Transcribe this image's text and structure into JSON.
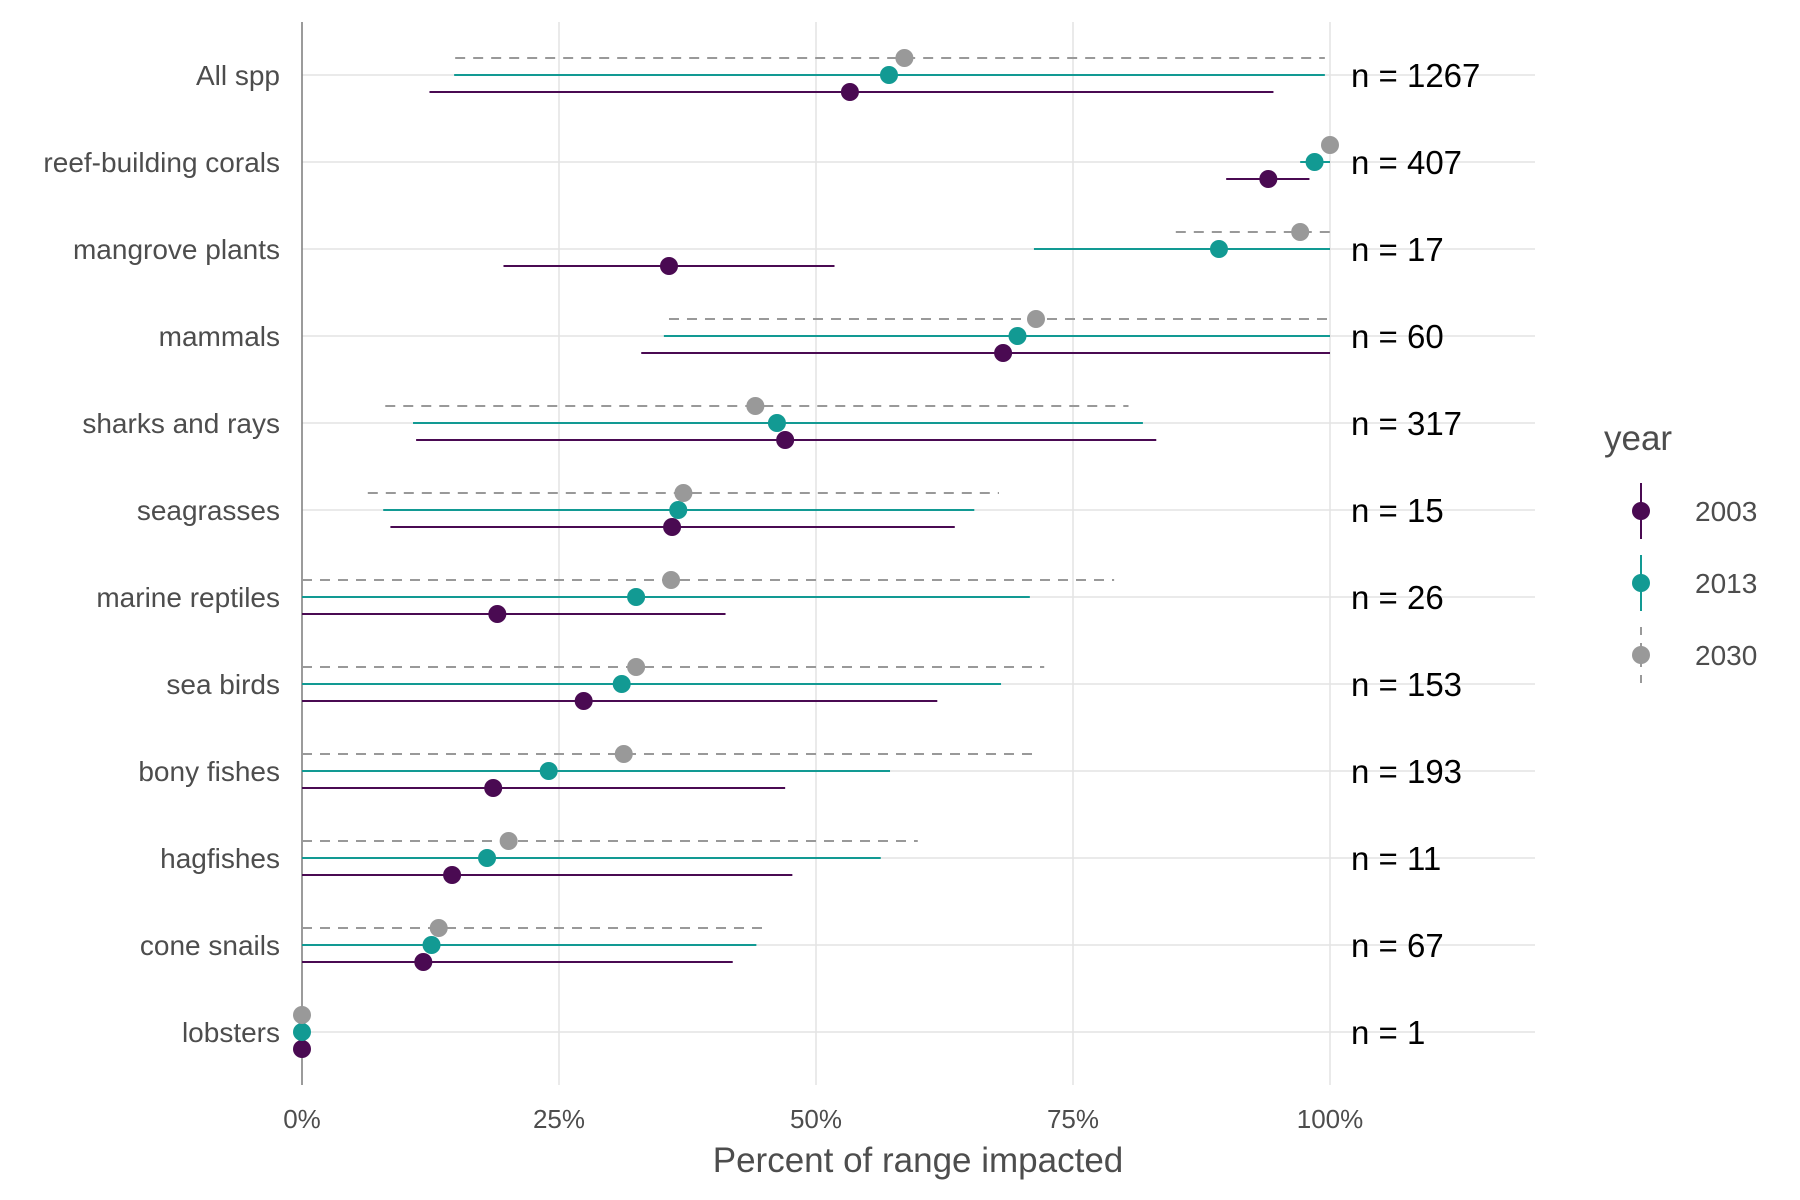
{
  "chart_data": {
    "type": "dot-interval",
    "xlabel": "Percent of range impacted",
    "xlim": [
      0,
      120
    ],
    "x_ticks": [
      0,
      25,
      50,
      75,
      100
    ],
    "x_tick_labels": [
      "0%",
      "25%",
      "50%",
      "75%",
      "100%"
    ],
    "grid": true,
    "legend": {
      "title": "year",
      "position": "right",
      "entries": [
        {
          "label": "2003",
          "color": "#4a0a52",
          "linestyle": "solid"
        },
        {
          "label": "2013",
          "color": "#129a93",
          "linestyle": "solid"
        },
        {
          "label": "2030",
          "color": "#999999",
          "linestyle": "dashed"
        }
      ]
    },
    "categories": [
      "All spp",
      "reef-building corals",
      "mangrove plants",
      "mammals",
      "sharks and rays",
      "seagrasses",
      "marine reptiles",
      "sea birds",
      "bony fishes",
      "hagfishes",
      "cone snails",
      "lobsters"
    ],
    "n_labels": [
      "n = 1267",
      "n = 407",
      "n = 17",
      "n = 60",
      "n = 317",
      "n = 15",
      "n = 26",
      "n = 153",
      "n = 193",
      "n = 11",
      "n = 67",
      "n = 1"
    ],
    "series": [
      {
        "name": "2003",
        "points": [
          {
            "mean": 53.3,
            "low": 12.4,
            "high": 94.5
          },
          {
            "mean": 94.0,
            "low": 89.9,
            "high": 98.0
          },
          {
            "mean": 35.7,
            "low": 19.6,
            "high": 51.8
          },
          {
            "mean": 68.2,
            "low": 33.0,
            "high": 100.0
          },
          {
            "mean": 47.0,
            "low": 11.1,
            "high": 83.1
          },
          {
            "mean": 36.0,
            "low": 8.6,
            "high": 63.5
          },
          {
            "mean": 19.0,
            "low": 0.0,
            "high": 41.2
          },
          {
            "mean": 27.4,
            "low": 0.0,
            "high": 61.8
          },
          {
            "mean": 18.6,
            "low": 0.0,
            "high": 47.0
          },
          {
            "mean": 14.6,
            "low": 0.0,
            "high": 47.7
          },
          {
            "mean": 11.8,
            "low": 0.0,
            "high": 41.9
          },
          {
            "mean": 0.0,
            "low": 0.0,
            "high": 0.0
          }
        ]
      },
      {
        "name": "2013",
        "points": [
          {
            "mean": 57.1,
            "low": 14.8,
            "high": 99.5
          },
          {
            "mean": 98.5,
            "low": 97.1,
            "high": 100.0
          },
          {
            "mean": 89.2,
            "low": 71.2,
            "high": 100.0
          },
          {
            "mean": 69.6,
            "low": 35.2,
            "high": 100.0
          },
          {
            "mean": 46.2,
            "low": 10.8,
            "high": 81.8
          },
          {
            "mean": 36.6,
            "low": 7.9,
            "high": 65.4
          },
          {
            "mean": 32.5,
            "low": 0.0,
            "high": 70.8
          },
          {
            "mean": 31.1,
            "low": 0.0,
            "high": 68.0
          },
          {
            "mean": 24.0,
            "low": 0.0,
            "high": 57.2
          },
          {
            "mean": 18.0,
            "low": 0.0,
            "high": 56.3
          },
          {
            "mean": 12.6,
            "low": 0.0,
            "high": 44.2
          },
          {
            "mean": 0.0,
            "low": 0.0,
            "high": 0.0
          }
        ]
      },
      {
        "name": "2030",
        "points": [
          {
            "mean": 58.6,
            "low": 14.9,
            "high": 99.5
          },
          {
            "mean": 100.0,
            "low": 100.0,
            "high": 100.0
          },
          {
            "mean": 97.1,
            "low": 85.0,
            "high": 100.0
          },
          {
            "mean": 71.4,
            "low": 35.7,
            "high": 100.0
          },
          {
            "mean": 44.1,
            "low": 8.1,
            "high": 80.4
          },
          {
            "mean": 37.1,
            "low": 6.4,
            "high": 67.8
          },
          {
            "mean": 35.9,
            "low": 0.0,
            "high": 79.0
          },
          {
            "mean": 32.5,
            "low": 0.0,
            "high": 72.2
          },
          {
            "mean": 31.3,
            "low": 0.0,
            "high": 71.7
          },
          {
            "mean": 20.1,
            "low": 0.0,
            "high": 59.9
          },
          {
            "mean": 13.3,
            "low": 0.0,
            "high": 45.0
          },
          {
            "mean": 0.0,
            "low": 0.0,
            "high": 0.0
          }
        ]
      }
    ]
  }
}
